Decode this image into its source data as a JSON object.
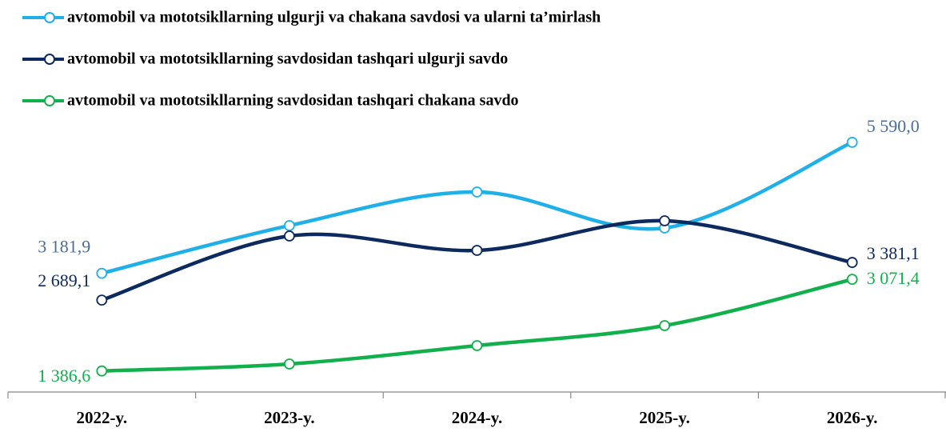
{
  "chart_data": {
    "type": "line",
    "categories": [
      "2022-y.",
      "2023-y.",
      "2024-y.",
      "2025-y.",
      "2026-y."
    ],
    "series": [
      {
        "name": "avtomobil va mototsikllarning ulgurji va chakana savdosi va ularni ta’mirlash",
        "color": "#1eb0e6",
        "label_color": "#4a6e98",
        "values": [
          3181.9,
          4059,
          4676,
          4015,
          5590.0
        ],
        "value_labels": [
          "3 181,9",
          null,
          null,
          null,
          "5 590,0"
        ]
      },
      {
        "name": "avtomobil va mototsikllarning savdosidan tashqari ulgurji savdo",
        "color": "#0d2a5e",
        "label_color": "#0d2a5e",
        "values": [
          2689.1,
          3868,
          3603,
          4147,
          3381.1
        ],
        "value_labels": [
          "2 689,1",
          null,
          null,
          null,
          "3 381,1"
        ]
      },
      {
        "name": "avtomobil va mototsikllarning savdosidan tashqari chakana savdo",
        "color": "#12b04c",
        "label_color": "#12b04c",
        "values": [
          1386.6,
          1515,
          1853,
          2221,
          3071.4
        ],
        "value_labels": [
          "1 386,6",
          null,
          null,
          null,
          "3 071,4"
        ]
      }
    ],
    "ylim": [
      1000,
      6000
    ],
    "smooth": true,
    "legend": "top-left"
  }
}
